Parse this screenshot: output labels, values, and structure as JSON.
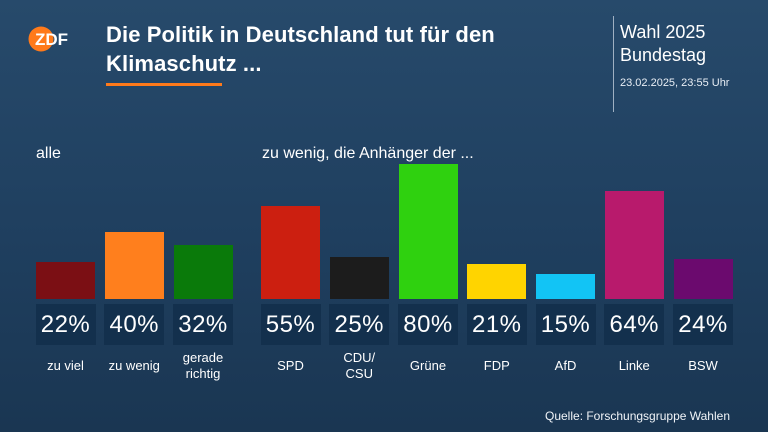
{
  "header": {
    "logo_text": "ZDF",
    "title": "Die Politik in Deutschland tut für den Klimaschutz ...",
    "event_line1": "Wahl 2025",
    "event_line2": "Bundestag",
    "timestamp": "23.02.2025, 23:55 Uhr"
  },
  "source": "Quelle: Forschungsgruppe Wahlen",
  "colors": {
    "accent": "#ff7a1a",
    "value_box": "#13304d"
  },
  "chart_data": [
    {
      "type": "bar",
      "group_label": "alle",
      "categories": [
        "zu viel",
        "zu wenig",
        "gerade\nrichtig"
      ],
      "values": [
        22,
        40,
        32
      ],
      "value_labels": [
        "22%",
        "40%",
        "32%"
      ],
      "colors": [
        "#7b0f14",
        "#ff7f1d",
        "#0a7a0a"
      ],
      "unit": "%",
      "ylim": [
        0,
        80
      ]
    },
    {
      "type": "bar",
      "group_label": "zu wenig, die Anhänger der ...",
      "categories": [
        "SPD",
        "CDU/\nCSU",
        "Grüne",
        "FDP",
        "AfD",
        "Linke",
        "BSW"
      ],
      "values": [
        55,
        25,
        80,
        21,
        15,
        64,
        24
      ],
      "value_labels": [
        "55%",
        "25%",
        "80%",
        "21%",
        "15%",
        "64%",
        "24%"
      ],
      "colors": [
        "#cc1f10",
        "#1c1c1c",
        "#2fd10f",
        "#ffd400",
        "#12c4f5",
        "#b81a6c",
        "#6b0a6e"
      ],
      "unit": "%",
      "ylim": [
        0,
        80
      ]
    }
  ]
}
